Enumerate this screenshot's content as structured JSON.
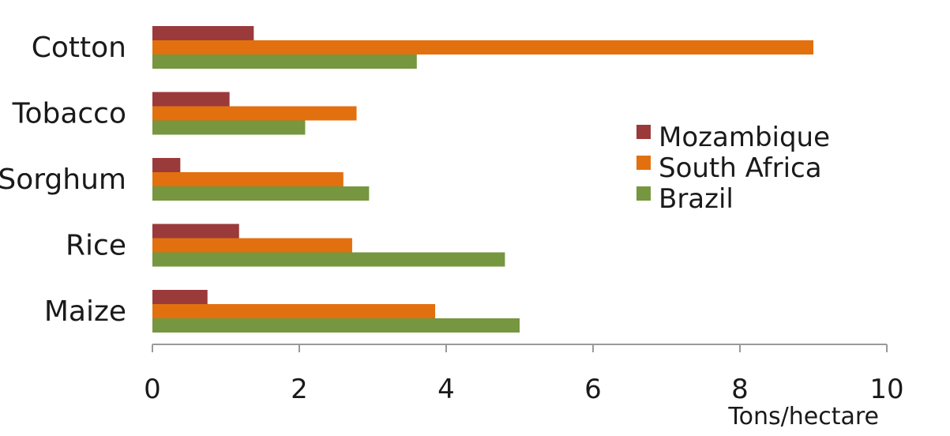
{
  "chart_data": {
    "type": "bar",
    "orientation": "horizontal",
    "categories": [
      "Cotton",
      "Tobacco",
      "Sorghum",
      "Rice",
      "Maize"
    ],
    "series": [
      {
        "name": "Mozambique",
        "color": "#9b3a3a",
        "values": [
          1.38,
          1.05,
          0.38,
          1.18,
          0.75
        ]
      },
      {
        "name": "South Africa",
        "color": "#e2700f",
        "values": [
          9.0,
          2.78,
          2.6,
          2.72,
          3.85
        ]
      },
      {
        "name": "Brazil",
        "color": "#76963f",
        "values": [
          3.6,
          2.08,
          2.95,
          4.8,
          5.0
        ]
      }
    ],
    "xlabel": "Tons/hectare",
    "ylabel": "",
    "xlim": [
      0,
      10
    ],
    "xticks": [
      "0",
      "2",
      "4",
      "6",
      "8",
      "10"
    ],
    "grid": false,
    "legend_position": "right"
  }
}
